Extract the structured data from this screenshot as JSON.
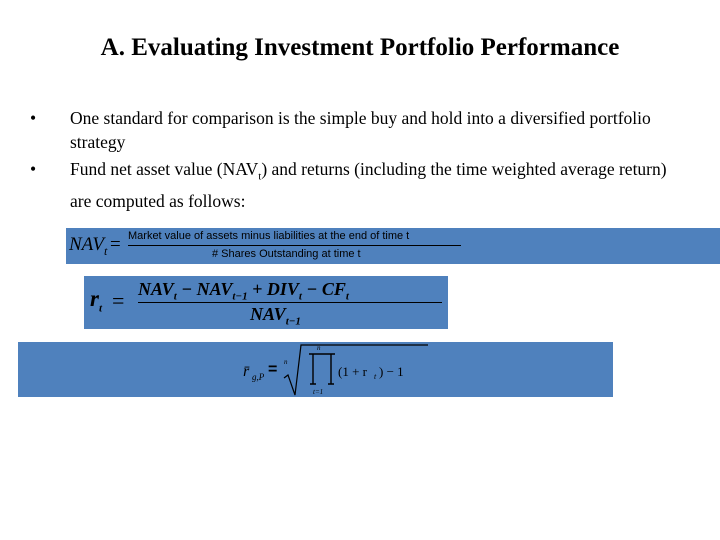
{
  "slide": {
    "title": "A.  Evaluating Investment Portfolio Performance",
    "bullets": [
      {
        "marker": "•",
        "text": "One standard for comparison is the simple buy and hold into a diversified portfolio strategy"
      },
      {
        "marker": "•",
        "text_before": "Fund net asset value (NAV",
        "subscript": "t",
        "text_after": ") and returns (including the time weighted average return) are computed as follows:"
      }
    ]
  },
  "equations": {
    "nav": {
      "lhs": "NAV",
      "lhs_sub": "t",
      "equals": "=",
      "numerator": "Market  value  of assets  minus  liabilities   at the end of time  t",
      "denominator": "# Shares   Outstanding    at time  t"
    },
    "return": {
      "lhs": "r",
      "lhs_sub": "t",
      "equals": "=",
      "numerator": "NAV_t − NAV_{t−1} + DIV_t − CF_t",
      "denominator": "NAV_{t−1}"
    },
    "geometric": {
      "lhs": "r̄",
      "lhs_sub": "g,P",
      "equals": "=",
      "root_index": "n",
      "product_upper": "n",
      "product_lower": "t=1",
      "body": "(1 + r",
      "body_sub": "t",
      "body_end": ") − 1"
    }
  },
  "colors": {
    "equation_band": "#4f81bd",
    "text": "#000000",
    "background": "#ffffff"
  }
}
